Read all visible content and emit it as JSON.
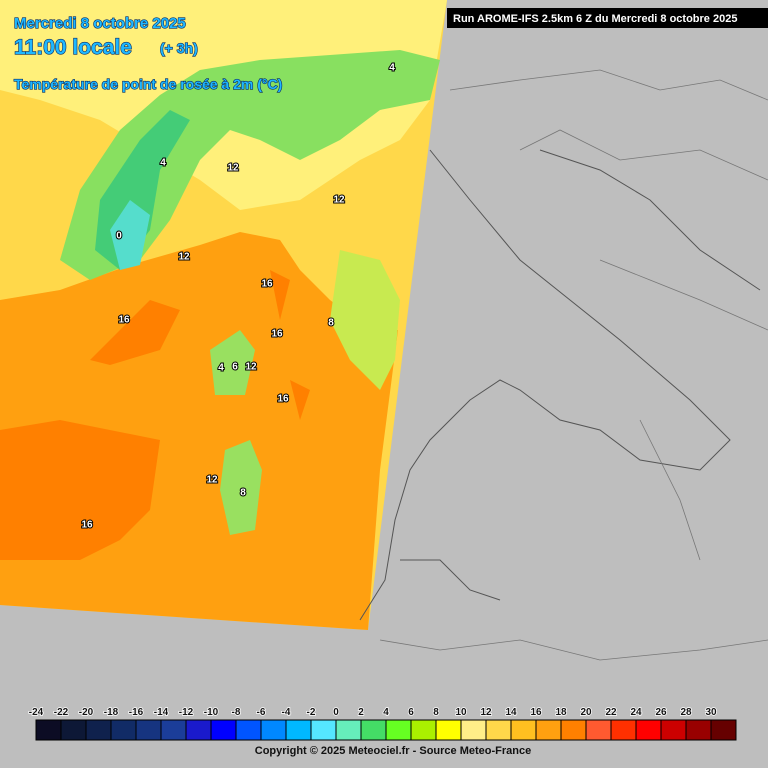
{
  "header": {
    "date": "Mercredi 8 octobre 2025",
    "time": "11:00 locale",
    "offset": "(+ 3h)",
    "parameter": "Température de point de rosée à 2m (°C)",
    "run": "Run AROME-IFS 2.5km 6 Z du Mercredi 8 octobre 2025"
  },
  "contour_labels": [
    4,
    12,
    12,
    4,
    0,
    12,
    16,
    16,
    16,
    8,
    4,
    6,
    12,
    16,
    12,
    8,
    16
  ],
  "legend": {
    "ticks": [
      -24,
      -22,
      -20,
      -18,
      -16,
      -14,
      -12,
      -10,
      -8,
      -6,
      -4,
      -2,
      0,
      2,
      4,
      6,
      8,
      10,
      12,
      14,
      16,
      18,
      20,
      22,
      24,
      26,
      28,
      30
    ],
    "colors": [
      "#0c0c24",
      "#0d1836",
      "#0f214d",
      "#112b66",
      "#163480",
      "#1b3d99",
      "#1a1acc",
      "#0000ff",
      "#0055ff",
      "#0088ff",
      "#00b8ff",
      "#55e6ff",
      "#66eebb",
      "#44dd66",
      "#66ff22",
      "#aaf000",
      "#ffff00",
      "#ffee88",
      "#ffd84a",
      "#ffc020",
      "#ffa010",
      "#ff8000",
      "#ff5a30",
      "#ff3000",
      "#ff0000",
      "#cc0000",
      "#990000",
      "#660000"
    ]
  },
  "footer": {
    "copyright": "Copyright © 2025 Meteociel.fr - Source Meteo-France"
  }
}
